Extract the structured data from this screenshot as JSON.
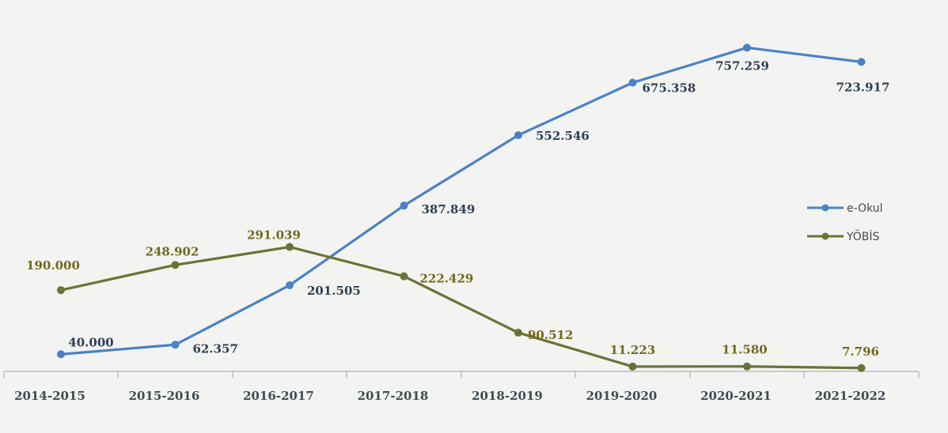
{
  "chart_data": {
    "type": "line",
    "categories": [
      "2014-2015",
      "2015-2016",
      "2016-2017",
      "2017-2018",
      "2018-2019",
      "2019-2020",
      "2020-2021",
      "2021-2022"
    ],
    "series": [
      {
        "name": "e-Okul",
        "values": [
          40000,
          62357,
          201505,
          387849,
          552546,
          675358,
          757259,
          723917
        ],
        "labels": [
          "40.000",
          "62.357",
          "201.505",
          "387.849",
          "552.546",
          "675.358",
          "757.259",
          "723.917"
        ],
        "color": "#4a82c4",
        "label_color": "#2f3f55"
      },
      {
        "name": "YÖBİS",
        "values": [
          190000,
          248902,
          291039,
          222429,
          90512,
          11223,
          11580,
          7796
        ],
        "labels": [
          "190.000",
          "248.902",
          "291.039",
          "222.429",
          "90.512",
          "11.223",
          "11.580",
          "7.796"
        ],
        "color": "#6b7236",
        "label_color": "#6f6a1c"
      }
    ],
    "ylim": [
      0,
      800000
    ],
    "grid": false,
    "legend_position": "right"
  }
}
